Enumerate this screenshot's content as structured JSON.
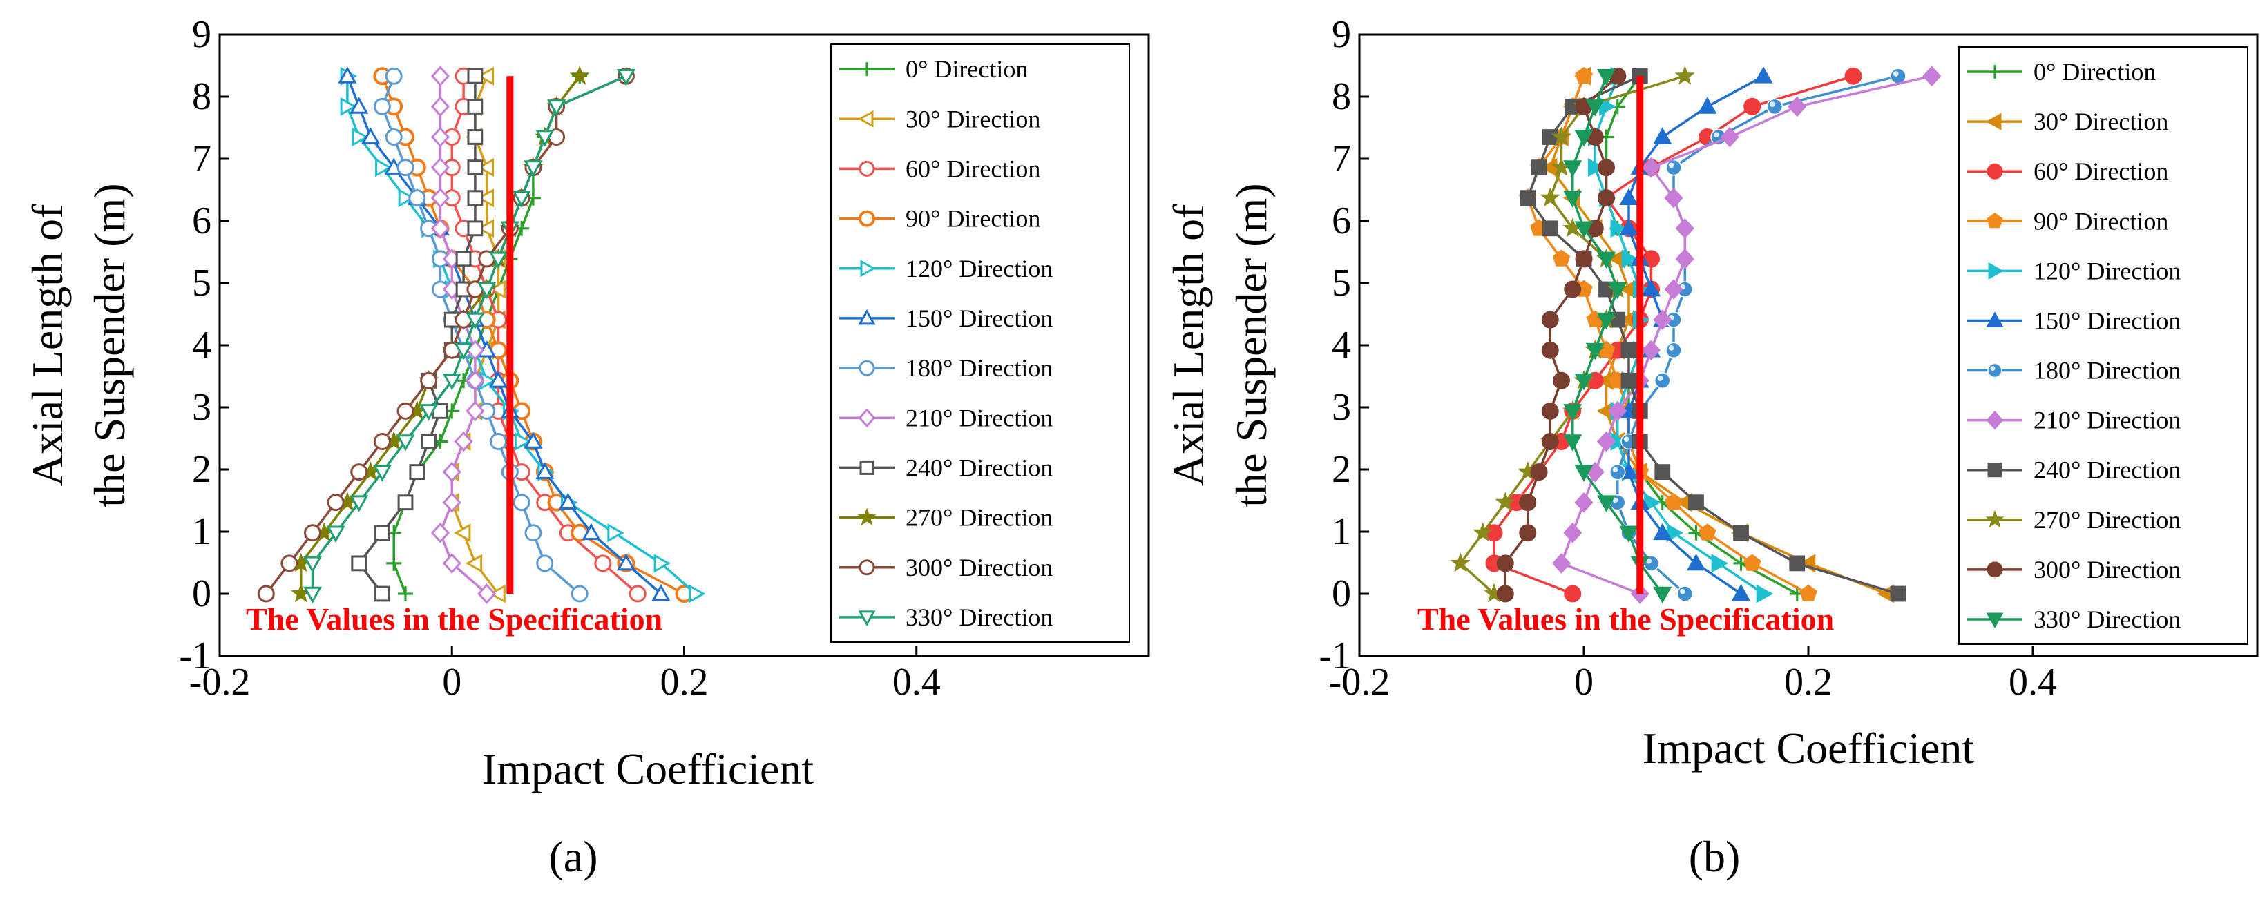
{
  "figure": {
    "panels": [
      {
        "label": "(a)",
        "chart_data": {
          "type": "line",
          "marker_style": "open",
          "title": "",
          "xlabel": "Impact Coefficient",
          "ylabel_lines": [
            "Axial Length of",
            "the Suspender (m)"
          ],
          "xlim": [
            -0.2,
            0.6
          ],
          "ylim": [
            -1,
            9
          ],
          "xticks": [
            -0.2,
            0,
            0.2,
            0.4
          ],
          "xtick_labels": [
            "-0.2",
            "0",
            "0.2",
            "0.4"
          ],
          "yticks": [
            -1,
            0,
            1,
            2,
            3,
            4,
            5,
            6,
            7,
            8,
            9
          ],
          "ytick_labels": [
            "-1",
            "0",
            "1",
            "2",
            "3",
            "4",
            "5",
            "6",
            "7",
            "8",
            "9"
          ],
          "y": [
            0,
            0.49,
            0.98,
            1.47,
            1.96,
            2.45,
            2.94,
            3.43,
            3.92,
            4.41,
            4.9,
            5.39,
            5.88,
            6.37,
            6.86,
            7.35,
            7.84,
            8.33
          ],
          "legend_position": "right",
          "series": [
            {
              "name": "0° Direction",
              "color": "#2ca02c",
              "marker": "plus",
              "values": [
                -0.04,
                -0.05,
                -0.05,
                -0.04,
                -0.03,
                -0.01,
                0.0,
                0.01,
                0.02,
                0.03,
                0.04,
                0.05,
                0.06,
                0.07,
                0.07,
                0.08,
                0.09,
                0.11
              ]
            },
            {
              "name": "30° Direction",
              "color": "#d4a017",
              "marker": "triangle-left",
              "values": [
                0.04,
                0.02,
                0.01,
                0.0,
                0.0,
                0.01,
                0.02,
                0.02,
                0.03,
                0.04,
                0.04,
                0.04,
                0.03,
                0.03,
                0.03,
                0.02,
                0.02,
                0.03
              ]
            },
            {
              "name": "60° Direction",
              "color": "#ef5350",
              "marker": "circle",
              "values": [
                0.16,
                0.13,
                0.1,
                0.08,
                0.06,
                0.05,
                0.04,
                0.04,
                0.04,
                0.04,
                0.03,
                0.02,
                0.01,
                0.0,
                0.0,
                0.0,
                0.01,
                0.01
              ]
            },
            {
              "name": "90° Direction",
              "color": "#f07b1b",
              "marker": "circle-open-thick",
              "values": [
                0.2,
                0.15,
                0.11,
                0.09,
                0.08,
                0.07,
                0.06,
                0.05,
                0.04,
                0.03,
                0.02,
                0.0,
                -0.01,
                -0.02,
                -0.03,
                -0.04,
                -0.05,
                -0.06
              ]
            },
            {
              "name": "120° Direction",
              "color": "#1fbfd0",
              "marker": "triangle-right",
              "values": [
                0.21,
                0.18,
                0.14,
                0.1,
                0.08,
                0.06,
                0.05,
                0.03,
                0.02,
                0.01,
                0.0,
                -0.01,
                -0.02,
                -0.04,
                -0.06,
                -0.08,
                -0.09,
                -0.09
              ]
            },
            {
              "name": "150° Direction",
              "color": "#1f6fd0",
              "marker": "triangle-up",
              "values": [
                0.18,
                0.15,
                0.12,
                0.1,
                0.08,
                0.07,
                0.05,
                0.04,
                0.03,
                0.02,
                0.01,
                0.0,
                -0.01,
                -0.03,
                -0.05,
                -0.07,
                -0.08,
                -0.09
              ]
            },
            {
              "name": "180° Direction",
              "color": "#5b9bd5",
              "marker": "circle",
              "values": [
                0.11,
                0.08,
                0.07,
                0.06,
                0.05,
                0.04,
                0.03,
                0.02,
                0.01,
                0.0,
                -0.01,
                -0.01,
                -0.02,
                -0.03,
                -0.04,
                -0.05,
                -0.06,
                -0.05
              ]
            },
            {
              "name": "210° Direction",
              "color": "#c77dd8",
              "marker": "diamond",
              "values": [
                0.03,
                0.0,
                -0.01,
                0.0,
                0.0,
                0.01,
                0.02,
                0.02,
                0.02,
                0.01,
                0.0,
                0.0,
                -0.01,
                -0.01,
                -0.01,
                -0.01,
                -0.01,
                -0.01
              ]
            },
            {
              "name": "240° Direction",
              "color": "#555555",
              "marker": "square",
              "values": [
                -0.06,
                -0.08,
                -0.06,
                -0.04,
                -0.03,
                -0.02,
                -0.01,
                -0.02,
                0.0,
                0.0,
                0.01,
                0.01,
                0.02,
                0.02,
                0.02,
                0.02,
                0.02,
                0.02
              ]
            },
            {
              "name": "270° Direction",
              "color": "#808000",
              "marker": "star",
              "values": [
                -0.13,
                -0.13,
                -0.11,
                -0.09,
                -0.07,
                -0.05,
                -0.03,
                -0.02,
                0.0,
                0.01,
                0.03,
                0.04,
                0.05,
                0.06,
                0.07,
                0.08,
                0.09,
                0.11
              ]
            },
            {
              "name": "300° Direction",
              "color": "#8b4a3a",
              "marker": "circle",
              "values": [
                -0.16,
                -0.14,
                -0.12,
                -0.1,
                -0.08,
                -0.06,
                -0.04,
                -0.02,
                0.0,
                0.01,
                0.02,
                0.03,
                0.05,
                0.06,
                0.07,
                0.09,
                0.09,
                0.15
              ]
            },
            {
              "name": "330° Direction",
              "color": "#20a070",
              "marker": "triangle-down",
              "values": [
                -0.12,
                -0.12,
                -0.1,
                -0.08,
                -0.06,
                -0.04,
                -0.02,
                0.0,
                0.01,
                0.02,
                0.03,
                0.04,
                0.05,
                0.06,
                0.07,
                0.08,
                0.09,
                0.15
              ]
            }
          ],
          "spec_line": {
            "label": "The Values in the Specification",
            "x": 0.05,
            "y_range": [
              0,
              8.33
            ],
            "color": "#ff0000"
          }
        }
      },
      {
        "label": "(b)",
        "chart_data": {
          "type": "line",
          "marker_style": "filled",
          "title": "",
          "xlabel": "Impact Coefficient",
          "ylabel_lines": [
            "Axial Length of",
            "the Suspender (m)"
          ],
          "xlim": [
            -0.2,
            0.6
          ],
          "ylim": [
            -1,
            9
          ],
          "xticks": [
            -0.2,
            0,
            0.2,
            0.4
          ],
          "xtick_labels": [
            "-0.2",
            "0",
            "0.2",
            "0.4"
          ],
          "yticks": [
            -1,
            0,
            1,
            2,
            3,
            4,
            5,
            6,
            7,
            8,
            9
          ],
          "ytick_labels": [
            "-1",
            "0",
            "1",
            "2",
            "3",
            "4",
            "5",
            "6",
            "7",
            "8",
            "9"
          ],
          "y": [
            0,
            0.49,
            0.98,
            1.47,
            1.96,
            2.45,
            2.94,
            3.43,
            3.92,
            4.41,
            4.9,
            5.39,
            5.88,
            6.37,
            6.86,
            7.35,
            7.84,
            8.33
          ],
          "legend_position": "right",
          "series": [
            {
              "name": "0° Direction",
              "color": "#2ca02c",
              "marker": "plus",
              "values": [
                0.19,
                0.14,
                0.1,
                0.07,
                0.05,
                0.04,
                0.04,
                0.04,
                0.05,
                0.05,
                0.05,
                0.04,
                0.03,
                0.02,
                0.02,
                0.02,
                0.03,
                0.05
              ]
            },
            {
              "name": "30° Direction",
              "color": "#d98a0b",
              "marker": "triangle-left",
              "values": [
                0.27,
                0.2,
                0.14,
                0.09,
                0.05,
                0.03,
                0.02,
                0.02,
                0.03,
                0.04,
                0.04,
                0.03,
                0.01,
                -0.01,
                -0.03,
                -0.02,
                -0.01,
                0.0
              ]
            },
            {
              "name": "60° Direction",
              "color": "#ef3b3b",
              "marker": "circle",
              "values": [
                -0.01,
                -0.08,
                -0.08,
                -0.06,
                -0.04,
                -0.02,
                -0.01,
                0.01,
                0.03,
                0.05,
                0.06,
                0.06,
                0.04,
                0.02,
                0.06,
                0.11,
                0.15,
                0.24
              ]
            },
            {
              "name": "90° Direction",
              "color": "#f08a1c",
              "marker": "pentagon",
              "values": [
                0.2,
                0.15,
                0.11,
                0.08,
                0.05,
                0.04,
                0.04,
                0.03,
                0.02,
                0.01,
                0.0,
                -0.02,
                -0.04,
                -0.05,
                -0.04,
                -0.02,
                -0.01,
                0.0
              ]
            },
            {
              "name": "120° Direction",
              "color": "#1fbfd0",
              "marker": "triangle-right",
              "values": [
                0.16,
                0.12,
                0.08,
                0.06,
                0.04,
                0.03,
                0.03,
                0.04,
                0.05,
                0.05,
                0.05,
                0.04,
                0.03,
                0.02,
                0.01,
                0.01,
                0.02,
                0.03
              ]
            },
            {
              "name": "150° Direction",
              "color": "#1f6fd0",
              "marker": "triangle-up",
              "values": [
                0.14,
                0.1,
                0.07,
                0.05,
                0.04,
                0.04,
                0.04,
                0.05,
                0.06,
                0.07,
                0.06,
                0.05,
                0.04,
                0.04,
                0.05,
                0.07,
                0.11,
                0.16
              ]
            },
            {
              "name": "180° Direction",
              "color": "#3f8fd0",
              "marker": "sphere",
              "values": [
                0.09,
                0.06,
                0.04,
                0.03,
                0.03,
                0.04,
                0.05,
                0.07,
                0.08,
                0.08,
                0.09,
                0.09,
                0.09,
                0.08,
                0.08,
                0.12,
                0.17,
                0.28
              ]
            },
            {
              "name": "210° Direction",
              "color": "#c77dd8",
              "marker": "diamond",
              "values": [
                0.05,
                -0.02,
                -0.01,
                0.0,
                0.01,
                0.02,
                0.03,
                0.05,
                0.06,
                0.07,
                0.08,
                0.09,
                0.09,
                0.08,
                0.06,
                0.13,
                0.19,
                0.31
              ]
            },
            {
              "name": "240° Direction",
              "color": "#555555",
              "marker": "square",
              "values": [
                0.28,
                0.19,
                0.14,
                0.1,
                0.07,
                0.05,
                0.05,
                0.04,
                0.04,
                0.03,
                0.02,
                0.0,
                -0.03,
                -0.05,
                -0.04,
                -0.03,
                -0.01,
                0.05
              ]
            },
            {
              "name": "270° Direction",
              "color": "#8a8a1a",
              "marker": "star",
              "values": [
                -0.08,
                -0.11,
                -0.09,
                -0.07,
                -0.05,
                -0.03,
                -0.01,
                0.0,
                0.01,
                0.02,
                0.03,
                0.02,
                -0.01,
                -0.03,
                -0.02,
                -0.02,
                0.0,
                0.09
              ]
            },
            {
              "name": "300° Direction",
              "color": "#7a3e2e",
              "marker": "circle",
              "values": [
                -0.07,
                -0.07,
                -0.05,
                -0.05,
                -0.04,
                -0.03,
                -0.03,
                -0.02,
                -0.03,
                -0.03,
                -0.01,
                0.0,
                0.01,
                0.02,
                0.02,
                0.01,
                0.0,
                0.03
              ]
            },
            {
              "name": "330° Direction",
              "color": "#1a9a5a",
              "marker": "triangle-down",
              "values": [
                0.07,
                0.05,
                0.04,
                0.02,
                0.0,
                -0.01,
                -0.01,
                0.0,
                0.01,
                0.02,
                0.03,
                0.02,
                0.0,
                -0.01,
                -0.01,
                0.0,
                0.01,
                0.02
              ]
            }
          ],
          "spec_line": {
            "label": "The Values in the Specification",
            "x": 0.05,
            "y_range": [
              0,
              8.33
            ],
            "color": "#ff0000"
          }
        }
      }
    ]
  }
}
